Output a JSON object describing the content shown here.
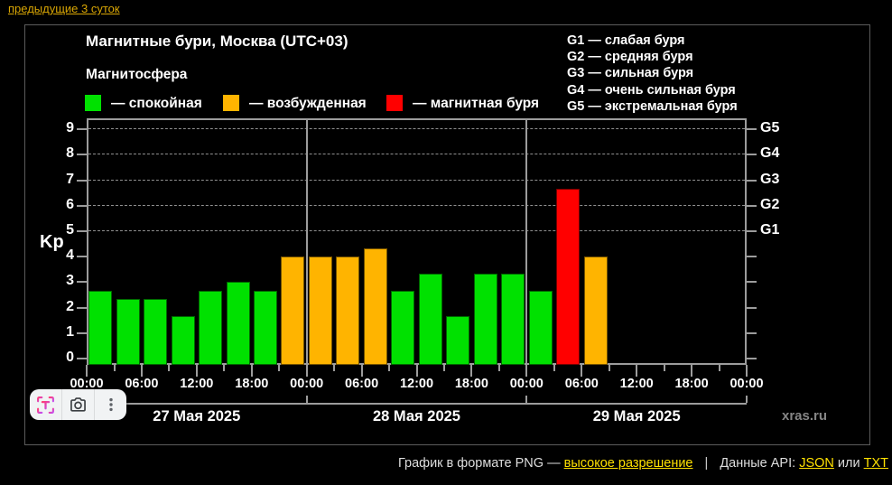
{
  "page": {
    "background": "#000000",
    "top_link": "предыдущие 3 суток",
    "top_link_color": "#d9a604",
    "caption": {
      "prefix": "График в формате PNG —",
      "hires_link": "высокое разрешение",
      "separator": "|",
      "api_label": "Данные API:",
      "json_link": "JSON",
      "or_word": "или",
      "txt_link": "TXT",
      "link_color": "#ffe100"
    }
  },
  "chart": {
    "title": "Магнитные бури, Москва (UTC+03)",
    "subtitle": "Магнитосфера",
    "kp_axis_label": "Kp",
    "watermark": "xras.ru",
    "legend": [
      {
        "name": "quiet",
        "label": "— спокойная",
        "color": "#00e100"
      },
      {
        "name": "excited",
        "label": "— возбужденная",
        "color": "#ffb400"
      },
      {
        "name": "storm",
        "label": "— магнитная буря",
        "color": "#ff0000"
      }
    ],
    "g_scale_legend": [
      "G1 — слабая буря",
      "G2 — средняя буря",
      "G3 — сильная буря",
      "G4 — очень сильная буря",
      "G5 — экстремальная буря"
    ]
  },
  "chart_data": {
    "type": "bar",
    "title": "Магнитные бури, Москва (UTC+03)",
    "ylabel": "Kp",
    "ylim": [
      0,
      9.4
    ],
    "yticks": [
      0,
      1,
      2,
      3,
      4,
      5,
      6,
      7,
      8,
      9
    ],
    "grid_levels": [
      5,
      6,
      7,
      8,
      9
    ],
    "right_axis_labels": {
      "5": "G1",
      "6": "G2",
      "7": "G3",
      "8": "G4",
      "9": "G5"
    },
    "slot_hours": 3,
    "slots_per_day": 8,
    "time_tick_labels": [
      "00:00",
      "06:00",
      "12:00",
      "18:00",
      "00:00",
      "06:00",
      "12:00",
      "18:00",
      "00:00",
      "06:00",
      "12:00",
      "18:00",
      "00:00"
    ],
    "days": [
      {
        "date": "27 Мая 2025",
        "values": [
          2.67,
          2.33,
          2.33,
          1.67,
          2.67,
          3.0,
          2.67,
          4.0
        ]
      },
      {
        "date": "28 Мая 2025",
        "values": [
          4.0,
          4.0,
          4.33,
          2.67,
          3.33,
          1.67,
          3.33,
          3.33
        ]
      },
      {
        "date": "29 Мая 2025",
        "values": [
          2.67,
          6.67,
          4.0
        ]
      }
    ],
    "color_thresholds": [
      {
        "below": 4,
        "color": "#00e100",
        "meaning": "спокойная"
      },
      {
        "below": 5,
        "color": "#ffb400",
        "meaning": "возбужденная"
      },
      {
        "below": 10,
        "color": "#ff0000",
        "meaning": "магнитная буря"
      }
    ],
    "legend_position": "top",
    "grid": "dashed horizontal at G-levels only"
  },
  "overlay_toolbar": {
    "buttons": [
      {
        "name": "text-capture",
        "icon": "ocr-brackets-T"
      },
      {
        "name": "image-search",
        "icon": "camera-lens"
      },
      {
        "name": "more-options",
        "icon": "kebab-menu"
      }
    ]
  }
}
